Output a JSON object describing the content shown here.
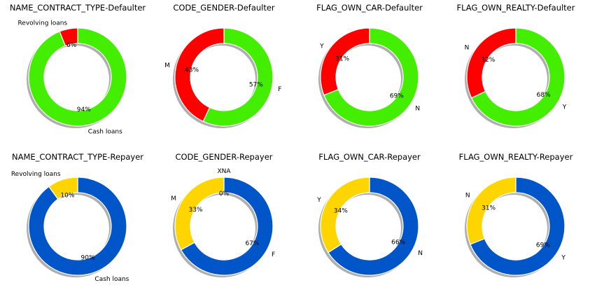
{
  "chart_data": [
    {
      "type": "pie",
      "donut": true,
      "title": "NAME_CONTRACT_TYPE-Defaulter",
      "slices": [
        {
          "label": "Cash loans",
          "value": 94,
          "pct_text": "94%",
          "color": "#44ee00"
        },
        {
          "label": "Revolving loans",
          "value": 6,
          "pct_text": "6%",
          "color": "#ff0000"
        }
      ]
    },
    {
      "type": "pie",
      "donut": true,
      "title": "CODE_GENDER-Defaulter",
      "slices": [
        {
          "label": "F",
          "value": 57,
          "pct_text": "57%",
          "color": "#44ee00"
        },
        {
          "label": "M",
          "value": 43,
          "pct_text": "43%",
          "color": "#ff0000"
        }
      ]
    },
    {
      "type": "pie",
      "donut": true,
      "title": "FLAG_OWN_CAR-Defaulter",
      "slices": [
        {
          "label": "N",
          "value": 69,
          "pct_text": "69%",
          "color": "#44ee00"
        },
        {
          "label": "Y",
          "value": 31,
          "pct_text": "31%",
          "color": "#ff0000"
        }
      ]
    },
    {
      "type": "pie",
      "donut": true,
      "title": "FLAG_OWN_REALTY-Defaulter",
      "slices": [
        {
          "label": "Y",
          "value": 68,
          "pct_text": "68%",
          "color": "#44ee00"
        },
        {
          "label": "N",
          "value": 32,
          "pct_text": "32%",
          "color": "#ff0000"
        }
      ]
    },
    {
      "type": "pie",
      "donut": true,
      "title": "NAME_CONTRACT_TYPE-Repayer",
      "slices": [
        {
          "label": "Cash loans",
          "value": 90,
          "pct_text": "90%",
          "color": "#0055c8"
        },
        {
          "label": "Revolving loans",
          "value": 10,
          "pct_text": "10%",
          "color": "#ffd500"
        }
      ]
    },
    {
      "type": "pie",
      "donut": true,
      "title": "CODE_GENDER-Repayer",
      "slices": [
        {
          "label": "F",
          "value": 67,
          "pct_text": "67%",
          "color": "#0055c8"
        },
        {
          "label": "M",
          "value": 33,
          "pct_text": "33%",
          "color": "#ffd500"
        },
        {
          "label": "XNA",
          "value": 0,
          "pct_text": "0%",
          "color": "#ffd500"
        }
      ]
    },
    {
      "type": "pie",
      "donut": true,
      "title": "FLAG_OWN_CAR-Repayer",
      "slices": [
        {
          "label": "N",
          "value": 66,
          "pct_text": "66%",
          "color": "#0055c8"
        },
        {
          "label": "Y",
          "value": 34,
          "pct_text": "34%",
          "color": "#ffd500"
        }
      ]
    },
    {
      "type": "pie",
      "donut": true,
      "title": "FLAG_OWN_REALTY-Repayer",
      "slices": [
        {
          "label": "Y",
          "value": 69,
          "pct_text": "69%",
          "color": "#0055c8"
        },
        {
          "label": "N",
          "value": 31,
          "pct_text": "31%",
          "color": "#ffd500"
        }
      ]
    }
  ]
}
